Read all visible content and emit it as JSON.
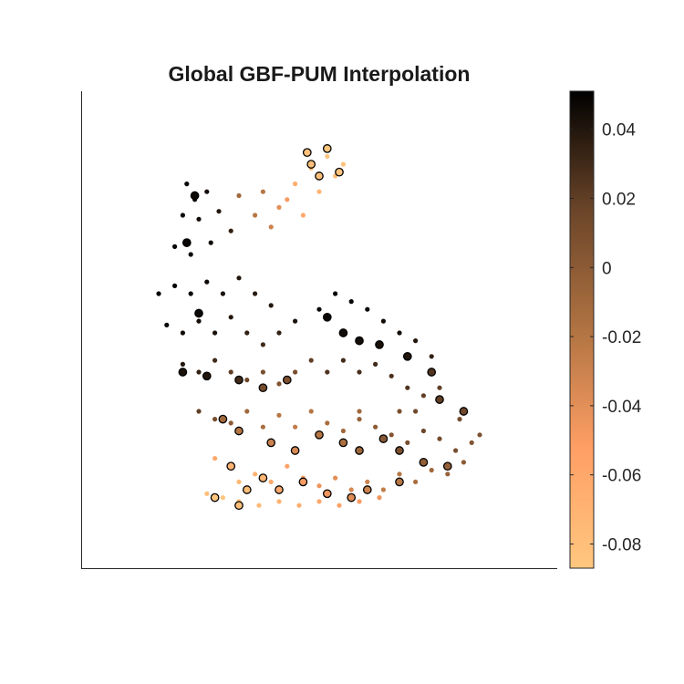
{
  "chart_data": {
    "type": "scatter",
    "title": "Global GBF-PUM Interpolation",
    "xlabel": "",
    "ylabel": "",
    "axes_visible": false,
    "xlim": [
      0,
      1
    ],
    "ylim": [
      0,
      1
    ],
    "colormap": "copper (reversed)",
    "colormap_stops": [
      "#ffc77f",
      "#ff9f65",
      "#b07342",
      "#6b4529",
      "#000000"
    ],
    "colorbar": {
      "position": "right",
      "clim": [
        -0.087,
        0.051
      ],
      "ticks": [
        0.04,
        0.02,
        0,
        -0.02,
        -0.04,
        -0.06,
        -0.08
      ],
      "tick_labels": [
        "0.04",
        "0.02",
        "0",
        "-0.02",
        "-0.04",
        "-0.06",
        "-0.08"
      ]
    },
    "series": [
      {
        "role": "interpolated-nodes",
        "points": [
          [
            0.17,
            0.88,
            0.048
          ],
          [
            0.19,
            0.84,
            0.046
          ],
          [
            0.22,
            0.86,
            0.045
          ],
          [
            0.16,
            0.8,
            0.047
          ],
          [
            0.2,
            0.79,
            0.045
          ],
          [
            0.25,
            0.81,
            0.04
          ],
          [
            0.14,
            0.72,
            0.049
          ],
          [
            0.18,
            0.7,
            0.048
          ],
          [
            0.23,
            0.73,
            0.046
          ],
          [
            0.28,
            0.76,
            0.035
          ],
          [
            0.1,
            0.6,
            0.05
          ],
          [
            0.14,
            0.62,
            0.049
          ],
          [
            0.18,
            0.6,
            0.048
          ],
          [
            0.22,
            0.63,
            0.047
          ],
          [
            0.26,
            0.6,
            0.045
          ],
          [
            0.3,
            0.64,
            0.04
          ],
          [
            0.34,
            0.6,
            0.038
          ],
          [
            0.38,
            0.57,
            0.04
          ],
          [
            0.12,
            0.52,
            0.047
          ],
          [
            0.16,
            0.5,
            0.046
          ],
          [
            0.2,
            0.53,
            0.045
          ],
          [
            0.24,
            0.5,
            0.043
          ],
          [
            0.28,
            0.54,
            0.04
          ],
          [
            0.32,
            0.5,
            0.035
          ],
          [
            0.36,
            0.47,
            0.03
          ],
          [
            0.4,
            0.5,
            0.035
          ],
          [
            0.44,
            0.53,
            0.042
          ],
          [
            0.5,
            0.56,
            0.048
          ],
          [
            0.54,
            0.6,
            0.049
          ],
          [
            0.58,
            0.58,
            0.048
          ],
          [
            0.62,
            0.56,
            0.047
          ],
          [
            0.66,
            0.53,
            0.046
          ],
          [
            0.7,
            0.5,
            0.045
          ],
          [
            0.74,
            0.48,
            0.04
          ],
          [
            0.78,
            0.44,
            0.035
          ],
          [
            0.16,
            0.42,
            0.04
          ],
          [
            0.2,
            0.4,
            0.035
          ],
          [
            0.24,
            0.43,
            0.03
          ],
          [
            0.28,
            0.4,
            0.02
          ],
          [
            0.32,
            0.38,
            0.015
          ],
          [
            0.36,
            0.4,
            0.01
          ],
          [
            0.4,
            0.37,
            0.005
          ],
          [
            0.44,
            0.4,
            0.01
          ],
          [
            0.48,
            0.43,
            0.02
          ],
          [
            0.52,
            0.4,
            0.025
          ],
          [
            0.56,
            0.43,
            0.03
          ],
          [
            0.6,
            0.4,
            0.028
          ],
          [
            0.64,
            0.42,
            0.03
          ],
          [
            0.68,
            0.39,
            0.027
          ],
          [
            0.72,
            0.36,
            0.025
          ],
          [
            0.76,
            0.34,
            0.02
          ],
          [
            0.8,
            0.36,
            0.02
          ],
          [
            0.2,
            0.3,
            0.02
          ],
          [
            0.24,
            0.28,
            0.01
          ],
          [
            0.28,
            0.27,
            0
          ],
          [
            0.32,
            0.3,
            -0.01
          ],
          [
            0.36,
            0.26,
            -0.015
          ],
          [
            0.4,
            0.29,
            -0.02
          ],
          [
            0.44,
            0.26,
            -0.025
          ],
          [
            0.48,
            0.3,
            -0.02
          ],
          [
            0.52,
            0.27,
            -0.015
          ],
          [
            0.56,
            0.25,
            -0.01
          ],
          [
            0.6,
            0.28,
            -0.005
          ],
          [
            0.64,
            0.26,
            0
          ],
          [
            0.68,
            0.24,
            0.005
          ],
          [
            0.72,
            0.22,
            0.01
          ],
          [
            0.76,
            0.25,
            0.015
          ],
          [
            0.8,
            0.23,
            0.012
          ],
          [
            0.84,
            0.2,
            0.01
          ],
          [
            0.88,
            0.22,
            0.005
          ],
          [
            0.24,
            0.18,
            -0.06
          ],
          [
            0.28,
            0.16,
            -0.07
          ],
          [
            0.3,
            0.12,
            -0.075
          ],
          [
            0.34,
            0.14,
            -0.07
          ],
          [
            0.38,
            0.12,
            -0.06
          ],
          [
            0.42,
            0.16,
            -0.055
          ],
          [
            0.46,
            0.13,
            -0.05
          ],
          [
            0.5,
            0.11,
            -0.045
          ],
          [
            0.54,
            0.13,
            -0.04
          ],
          [
            0.58,
            0.1,
            -0.035
          ],
          [
            0.62,
            0.12,
            -0.03
          ],
          [
            0.66,
            0.1,
            -0.025
          ],
          [
            0.7,
            0.14,
            -0.02
          ],
          [
            0.74,
            0.12,
            -0.015
          ],
          [
            0.78,
            0.15,
            -0.01
          ],
          [
            0.82,
            0.14,
            -0.005
          ],
          [
            0.86,
            0.17,
            0
          ],
          [
            0.22,
            0.09,
            -0.08
          ],
          [
            0.26,
            0.08,
            -0.085
          ],
          [
            0.3,
            0.07,
            -0.08
          ],
          [
            0.35,
            0.06,
            -0.075
          ],
          [
            0.4,
            0.07,
            -0.07
          ],
          [
            0.45,
            0.06,
            -0.065
          ],
          [
            0.5,
            0.07,
            -0.06
          ],
          [
            0.55,
            0.06,
            -0.055
          ],
          [
            0.6,
            0.07,
            -0.05
          ],
          [
            0.65,
            0.08,
            -0.045
          ],
          [
            0.3,
            0.85,
            -0.01
          ],
          [
            0.34,
            0.8,
            -0.02
          ],
          [
            0.38,
            0.77,
            -0.03
          ],
          [
            0.42,
            0.84,
            -0.05
          ],
          [
            0.46,
            0.8,
            -0.06
          ],
          [
            0.5,
            0.86,
            -0.07
          ],
          [
            0.54,
            0.9,
            -0.08
          ],
          [
            0.52,
            0.95,
            -0.085
          ],
          [
            0.56,
            0.93,
            -0.083
          ],
          [
            0.48,
            0.92,
            -0.078
          ],
          [
            0.44,
            0.88,
            -0.065
          ],
          [
            0.4,
            0.82,
            -0.04
          ],
          [
            0.36,
            0.86,
            -0.02
          ],
          [
            0.6,
            0.3,
            -0.01
          ],
          [
            0.7,
            0.3,
            0.01
          ],
          [
            0.74,
            0.3,
            0.015
          ],
          [
            0.85,
            0.28,
            0.012
          ],
          [
            0.9,
            0.24,
            0.008
          ]
        ]
      },
      {
        "role": "center-nodes",
        "points": [
          [
            0.19,
            0.85,
            0.047
          ],
          [
            0.17,
            0.73,
            0.048
          ],
          [
            0.2,
            0.55,
            0.047
          ],
          [
            0.16,
            0.4,
            0.042
          ],
          [
            0.22,
            0.39,
            0.04
          ],
          [
            0.3,
            0.38,
            0.03
          ],
          [
            0.36,
            0.36,
            0.012
          ],
          [
            0.42,
            0.38,
            0.008
          ],
          [
            0.52,
            0.54,
            0.048
          ],
          [
            0.56,
            0.5,
            0.045
          ],
          [
            0.6,
            0.48,
            0.044
          ],
          [
            0.65,
            0.47,
            0.043
          ],
          [
            0.72,
            0.44,
            0.04
          ],
          [
            0.78,
            0.4,
            0.025
          ],
          [
            0.8,
            0.33,
            0.02
          ],
          [
            0.86,
            0.3,
            0.014
          ],
          [
            0.26,
            0.28,
            -0.01
          ],
          [
            0.3,
            0.25,
            -0.02
          ],
          [
            0.38,
            0.22,
            -0.03
          ],
          [
            0.44,
            0.2,
            -0.035
          ],
          [
            0.5,
            0.24,
            -0.02
          ],
          [
            0.56,
            0.22,
            -0.015
          ],
          [
            0.6,
            0.2,
            -0.008
          ],
          [
            0.66,
            0.23,
            0.002
          ],
          [
            0.7,
            0.2,
            0.008
          ],
          [
            0.76,
            0.17,
            -0.002
          ],
          [
            0.82,
            0.16,
            -0.004
          ],
          [
            0.28,
            0.16,
            -0.07
          ],
          [
            0.32,
            0.1,
            -0.078
          ],
          [
            0.36,
            0.13,
            -0.072
          ],
          [
            0.4,
            0.1,
            -0.06
          ],
          [
            0.46,
            0.12,
            -0.05
          ],
          [
            0.52,
            0.09,
            -0.045
          ],
          [
            0.58,
            0.08,
            -0.038
          ],
          [
            0.62,
            0.1,
            -0.03
          ],
          [
            0.7,
            0.12,
            -0.02
          ],
          [
            0.48,
            0.93,
            -0.08
          ],
          [
            0.5,
            0.9,
            -0.082
          ],
          [
            0.52,
            0.97,
            -0.085
          ],
          [
            0.55,
            0.91,
            -0.084
          ],
          [
            0.47,
            0.96,
            -0.082
          ],
          [
            0.24,
            0.08,
            -0.085
          ],
          [
            0.3,
            0.06,
            -0.08
          ]
        ]
      }
    ]
  }
}
